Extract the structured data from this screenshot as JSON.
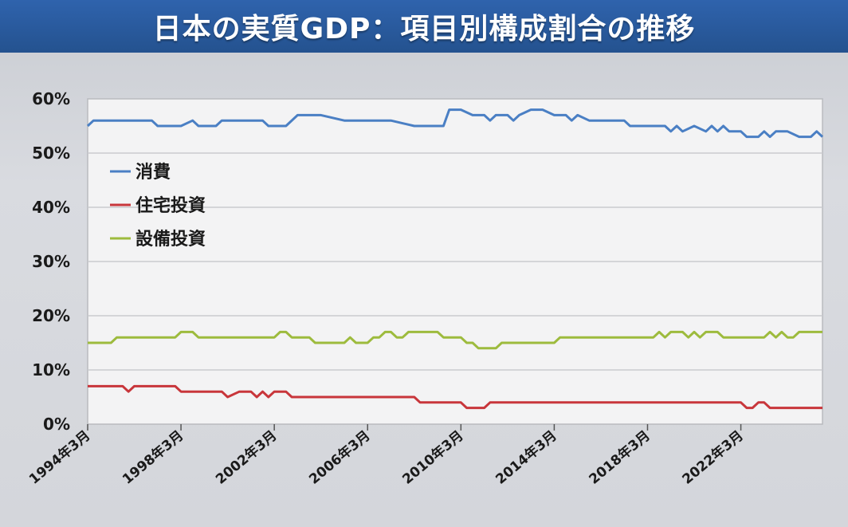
{
  "title": "日本の実質GDP：項目別構成割合の推移",
  "chart_data": {
    "type": "line",
    "ylim": [
      0,
      60
    ],
    "yticks": [
      "0%",
      "10%",
      "20%",
      "30%",
      "40%",
      "50%",
      "60%"
    ],
    "xticks": [
      "1994年3月",
      "1998年3月",
      "2002年3月",
      "2006年3月",
      "2010年3月",
      "2014年3月",
      "2018年3月",
      "2022年3月"
    ],
    "xlim": [
      1994.0,
      2025.5
    ],
    "grid": true,
    "legend": "top-left",
    "series": [
      {
        "name": "消費",
        "color": "#4a7fc4",
        "points": [
          [
            1994.0,
            55
          ],
          [
            1994.25,
            56
          ],
          [
            1995,
            56
          ],
          [
            1996,
            56
          ],
          [
            1996.75,
            56
          ],
          [
            1997,
            55
          ],
          [
            1998,
            55
          ],
          [
            1998.5,
            56
          ],
          [
            1998.75,
            55
          ],
          [
            1999,
            55
          ],
          [
            1999.5,
            55
          ],
          [
            1999.75,
            56
          ],
          [
            2000,
            56
          ],
          [
            2001,
            56
          ],
          [
            2001.5,
            56
          ],
          [
            2001.75,
            55
          ],
          [
            2002.5,
            55
          ],
          [
            2003,
            57
          ],
          [
            2004,
            57
          ],
          [
            2005,
            56
          ],
          [
            2006,
            56
          ],
          [
            2007,
            56
          ],
          [
            2008,
            55
          ],
          [
            2009,
            55
          ],
          [
            2009.25,
            55
          ],
          [
            2009.5,
            58
          ],
          [
            2010,
            58
          ],
          [
            2010.5,
            57
          ],
          [
            2011,
            57
          ],
          [
            2011.25,
            56
          ],
          [
            2011.5,
            57
          ],
          [
            2012,
            57
          ],
          [
            2012.25,
            56
          ],
          [
            2012.5,
            57
          ],
          [
            2013,
            58
          ],
          [
            2013.5,
            58
          ],
          [
            2014,
            57
          ],
          [
            2014.5,
            57
          ],
          [
            2014.75,
            56
          ],
          [
            2015,
            57
          ],
          [
            2015.5,
            56
          ],
          [
            2016,
            56
          ],
          [
            2017,
            56
          ],
          [
            2017.25,
            55
          ],
          [
            2018,
            55
          ],
          [
            2018.5,
            55
          ],
          [
            2018.75,
            55
          ],
          [
            2019,
            54
          ],
          [
            2019.25,
            55
          ],
          [
            2019.5,
            54
          ],
          [
            2020,
            55
          ],
          [
            2020.5,
            54
          ],
          [
            2020.75,
            55
          ],
          [
            2021,
            54
          ],
          [
            2021.25,
            55
          ],
          [
            2021.5,
            54
          ],
          [
            2022,
            54
          ],
          [
            2022.25,
            53
          ],
          [
            2022.75,
            53
          ],
          [
            2023,
            54
          ],
          [
            2023.25,
            53
          ],
          [
            2023.5,
            54
          ],
          [
            2024,
            54
          ],
          [
            2024.5,
            53
          ],
          [
            2025,
            53
          ],
          [
            2025.25,
            54
          ],
          [
            2025.5,
            53
          ]
        ]
      },
      {
        "name": "住宅投資",
        "color": "#c8363b",
        "points": [
          [
            1994.0,
            7
          ],
          [
            1995,
            7
          ],
          [
            1995.5,
            7
          ],
          [
            1995.75,
            6
          ],
          [
            1996,
            7
          ],
          [
            1997,
            7
          ],
          [
            1997.75,
            7
          ],
          [
            1998,
            6
          ],
          [
            1999,
            6
          ],
          [
            1999.5,
            6
          ],
          [
            1999.75,
            6
          ],
          [
            2000,
            5
          ],
          [
            2000.5,
            6
          ],
          [
            2001,
            6
          ],
          [
            2001.25,
            5
          ],
          [
            2001.5,
            6
          ],
          [
            2001.75,
            5
          ],
          [
            2002,
            6
          ],
          [
            2002.5,
            6
          ],
          [
            2002.75,
            5
          ],
          [
            2004,
            5
          ],
          [
            2006,
            5
          ],
          [
            2008,
            5
          ],
          [
            2008.25,
            4
          ],
          [
            2010,
            4
          ],
          [
            2010.25,
            3
          ],
          [
            2011,
            3
          ],
          [
            2011.25,
            4
          ],
          [
            2013,
            4
          ],
          [
            2016,
            4
          ],
          [
            2019,
            4
          ],
          [
            2022,
            4
          ],
          [
            2022.25,
            3
          ],
          [
            2022.5,
            3
          ],
          [
            2022.75,
            4
          ],
          [
            2023,
            4
          ],
          [
            2023.25,
            3
          ],
          [
            2024,
            3
          ],
          [
            2025.5,
            3
          ]
        ]
      },
      {
        "name": "設備投資",
        "color": "#9dbb3d",
        "points": [
          [
            1994.0,
            15
          ],
          [
            1995,
            15
          ],
          [
            1995.25,
            16
          ],
          [
            1996,
            16
          ],
          [
            1997,
            16
          ],
          [
            1997.75,
            16
          ],
          [
            1998,
            17
          ],
          [
            1998.5,
            17
          ],
          [
            1998.75,
            16
          ],
          [
            1999,
            16
          ],
          [
            2000,
            16
          ],
          [
            2001,
            16
          ],
          [
            2002,
            16
          ],
          [
            2002.25,
            17
          ],
          [
            2002.5,
            17
          ],
          [
            2002.75,
            16
          ],
          [
            2003,
            16
          ],
          [
            2003.5,
            16
          ],
          [
            2003.75,
            15
          ],
          [
            2004,
            15
          ],
          [
            2005,
            15
          ],
          [
            2005.25,
            16
          ],
          [
            2005.5,
            15
          ],
          [
            2006,
            15
          ],
          [
            2006.25,
            16
          ],
          [
            2006.5,
            16
          ],
          [
            2006.75,
            17
          ],
          [
            2007,
            17
          ],
          [
            2007.25,
            16
          ],
          [
            2007.5,
            16
          ],
          [
            2007.75,
            17
          ],
          [
            2008,
            17
          ],
          [
            2009,
            17
          ],
          [
            2009.25,
            16
          ],
          [
            2010,
            16
          ],
          [
            2010.25,
            15
          ],
          [
            2010.5,
            15
          ],
          [
            2010.75,
            14
          ],
          [
            2011,
            14
          ],
          [
            2011.5,
            14
          ],
          [
            2011.75,
            15
          ],
          [
            2012,
            15
          ],
          [
            2013,
            15
          ],
          [
            2014,
            15
          ],
          [
            2014.25,
            16
          ],
          [
            2015,
            16
          ],
          [
            2016,
            16
          ],
          [
            2017,
            16
          ],
          [
            2018,
            16
          ],
          [
            2018.25,
            16
          ],
          [
            2018.5,
            17
          ],
          [
            2018.75,
            16
          ],
          [
            2019,
            17
          ],
          [
            2019.5,
            17
          ],
          [
            2019.75,
            16
          ],
          [
            2020,
            17
          ],
          [
            2020.25,
            16
          ],
          [
            2020.5,
            17
          ],
          [
            2021,
            17
          ],
          [
            2021.25,
            16
          ],
          [
            2022,
            16
          ],
          [
            2023,
            16
          ],
          [
            2023.25,
            17
          ],
          [
            2023.5,
            16
          ],
          [
            2023.75,
            17
          ],
          [
            2024,
            16
          ],
          [
            2024.25,
            16
          ],
          [
            2024.5,
            17
          ],
          [
            2025,
            17
          ],
          [
            2025.5,
            17
          ]
        ]
      }
    ]
  }
}
